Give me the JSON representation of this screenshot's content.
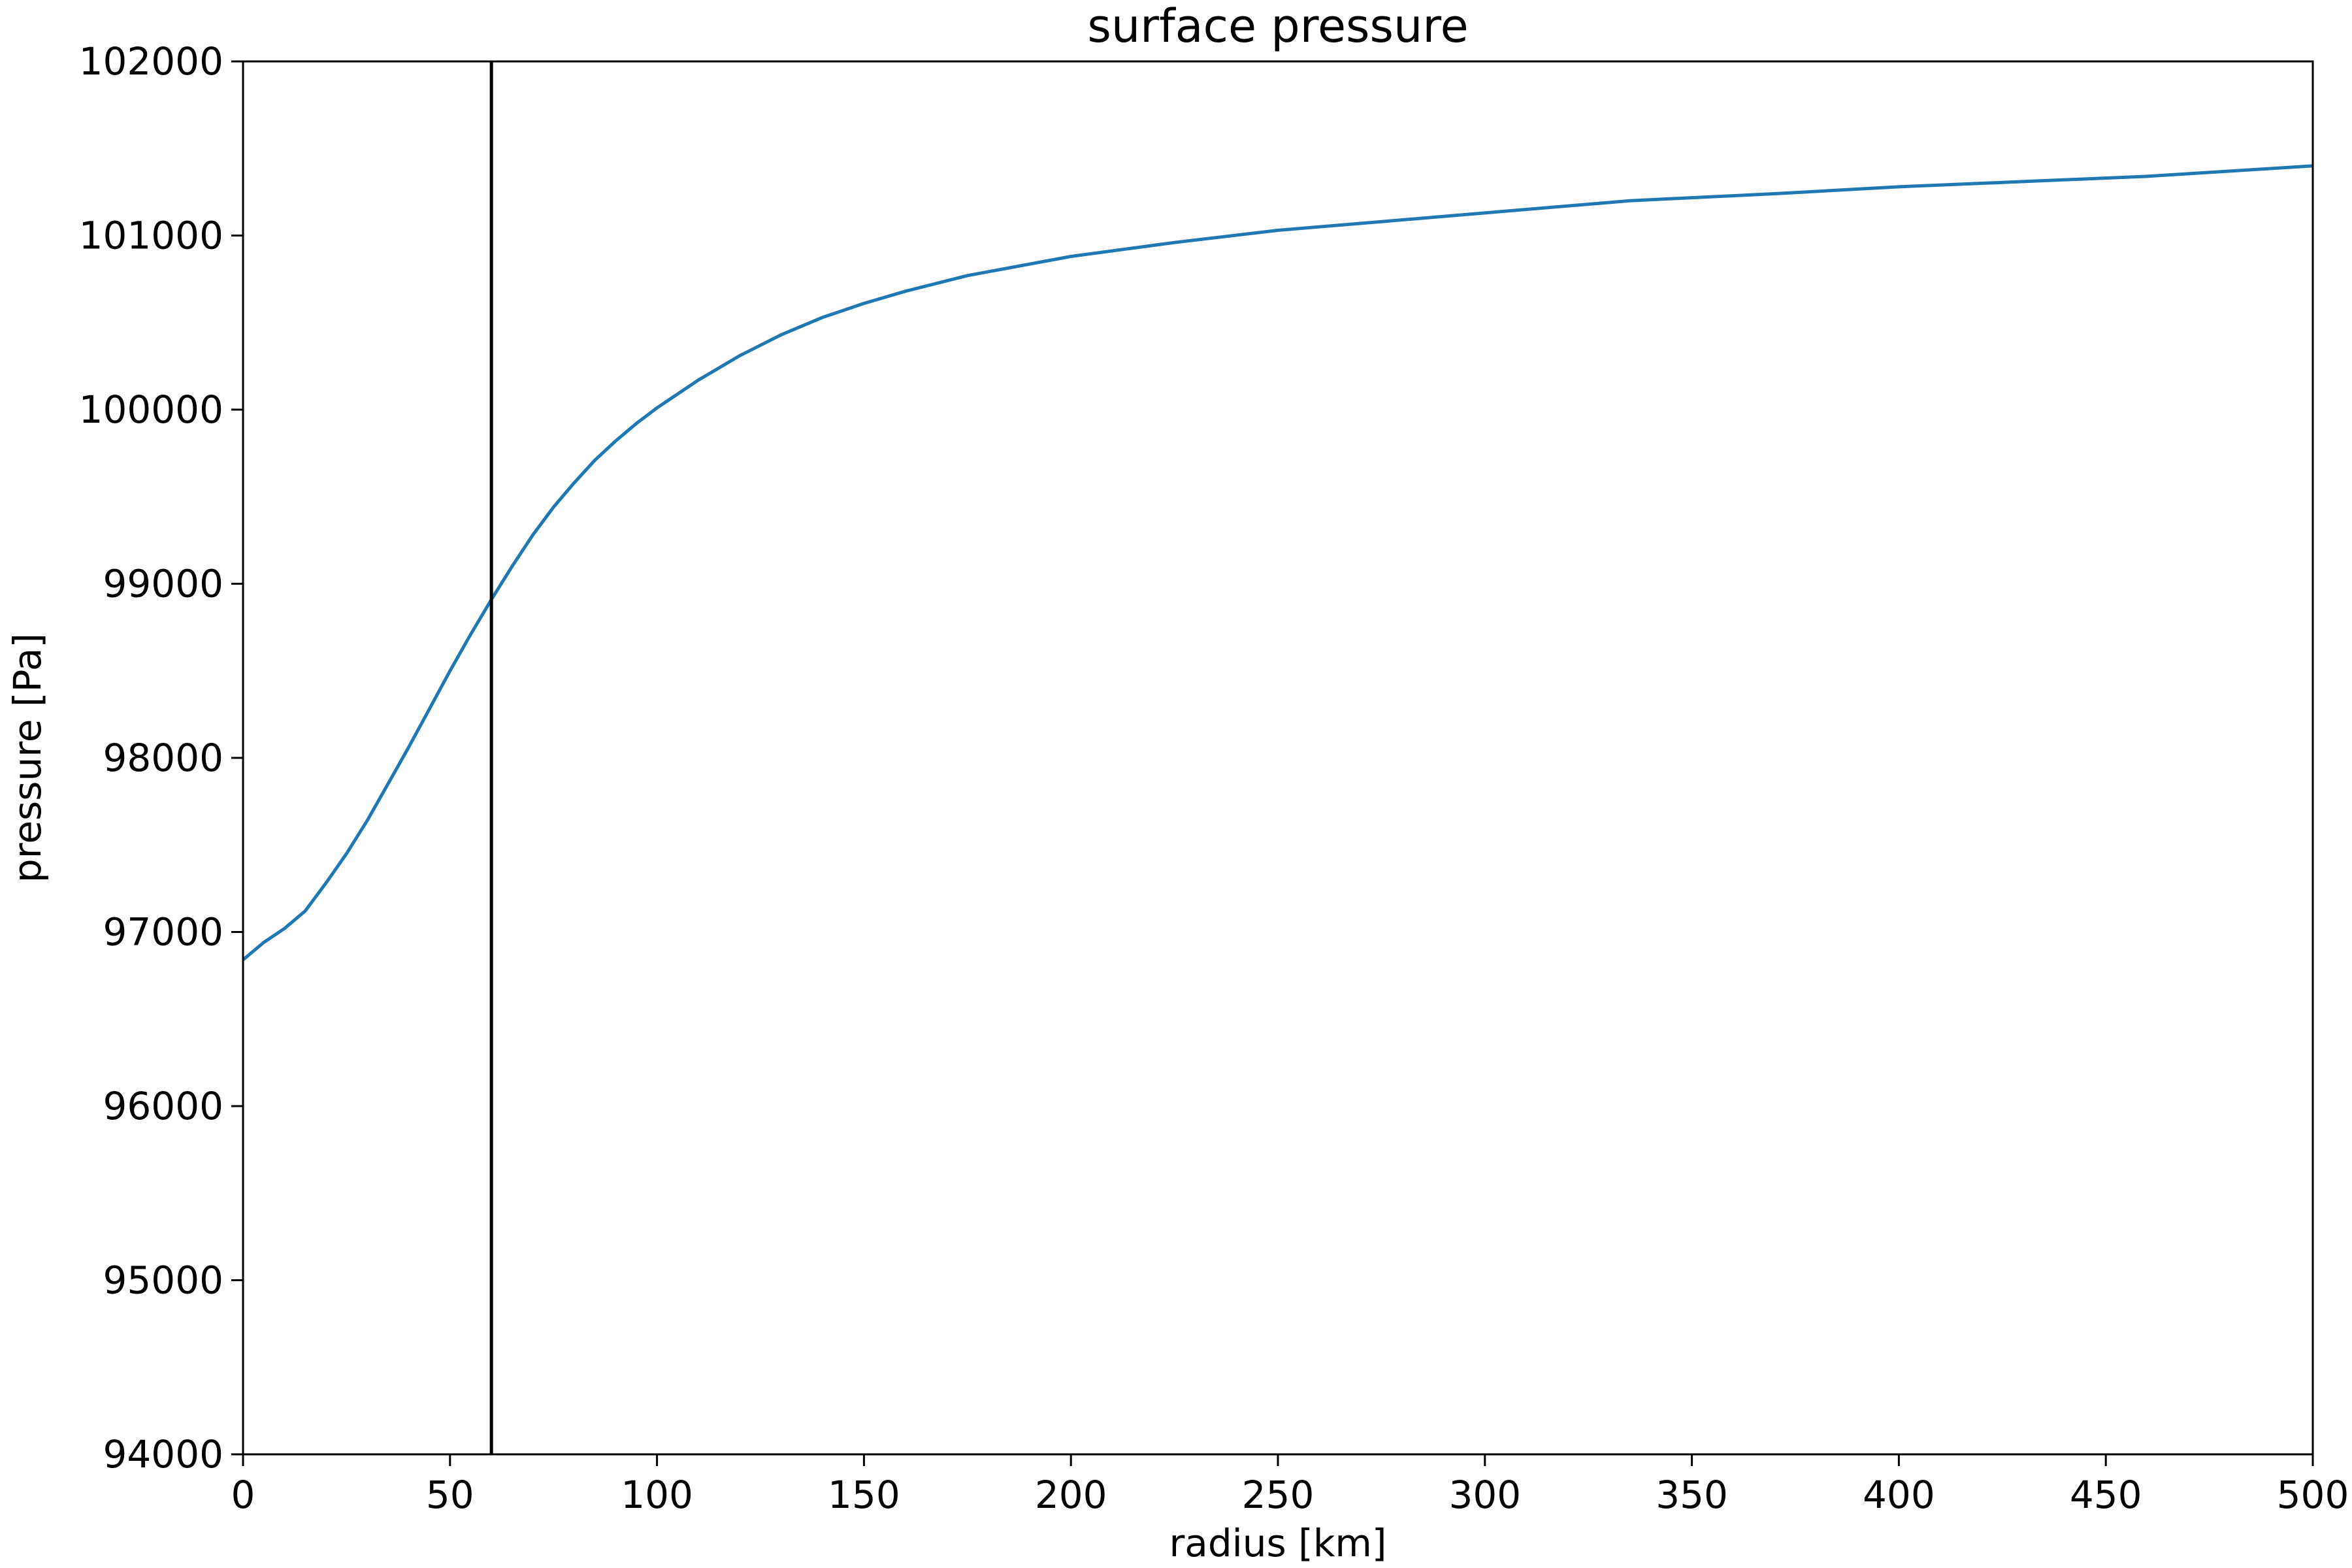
{
  "chart_data": {
    "type": "line",
    "title": "surface pressure",
    "xlabel": "radius [km]",
    "ylabel": "pressure [Pa]",
    "xlim": [
      0,
      500
    ],
    "ylim": [
      94000,
      102000
    ],
    "xticks": [
      0,
      50,
      100,
      150,
      200,
      250,
      300,
      350,
      400,
      450,
      500
    ],
    "yticks": [
      94000,
      95000,
      96000,
      97000,
      98000,
      99000,
      100000,
      101000,
      102000
    ],
    "grid": false,
    "legend": "none",
    "line_color": "#1f77b4",
    "vline": {
      "x": 60,
      "color": "#000000"
    },
    "series": [
      {
        "x": [
          0,
          5,
          10,
          15,
          20,
          25,
          30,
          35,
          40,
          45,
          50,
          55,
          60,
          65,
          70,
          75,
          80,
          85,
          90,
          95,
          100,
          110,
          120,
          130,
          140,
          150,
          160,
          175,
          200,
          225,
          250,
          275,
          300,
          335,
          370,
          400,
          430,
          460,
          480,
          500
        ],
        "y": [
          96840,
          96940,
          97020,
          97120,
          97280,
          97450,
          97640,
          97850,
          98060,
          98280,
          98500,
          98710,
          98910,
          99100,
          99280,
          99440,
          99580,
          99710,
          99820,
          99920,
          100010,
          100170,
          100310,
          100430,
          100530,
          100610,
          100680,
          100770,
          100880,
          100960,
          101030,
          101080,
          101130,
          101200,
          101240,
          101280,
          101310,
          101340,
          101370,
          101400
        ]
      }
    ]
  }
}
